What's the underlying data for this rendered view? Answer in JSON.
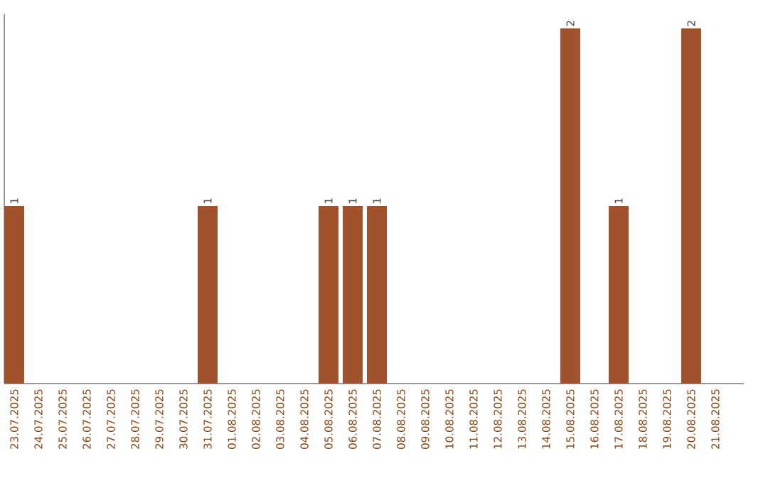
{
  "chart_data": {
    "type": "bar",
    "color": "#a0522d",
    "categories": [
      "23.07.2025",
      "24.07.2025",
      "25.07.2025",
      "26.07.2025",
      "27.07.2025",
      "28.07.2025",
      "29.07.2025",
      "30.07.2025",
      "31.07.2025",
      "01.08.2025",
      "02.08.2025",
      "03.08.2025",
      "04.08.2025",
      "05.08.2025",
      "06.08.2025",
      "07.08.2025",
      "08.08.2025",
      "09.08.2025",
      "10.08.2025",
      "11.08.2025",
      "12.08.2025",
      "13.08.2025",
      "14.08.2025",
      "15.08.2025",
      "16.08.2025",
      "17.08.2025",
      "18.08.2025",
      "19.08.2025",
      "20.08.2025",
      "21.08.2025"
    ],
    "values": [
      1,
      0,
      0,
      0,
      0,
      0,
      0,
      0,
      1,
      0,
      0,
      0,
      0,
      1,
      1,
      1,
      0,
      0,
      0,
      0,
      0,
      0,
      0,
      2,
      0,
      1,
      0,
      0,
      2,
      0
    ],
    "value_labels": [
      "1",
      null,
      null,
      null,
      null,
      null,
      null,
      null,
      "1",
      null,
      null,
      null,
      null,
      "1",
      "1",
      "1",
      null,
      null,
      null,
      null,
      null,
      null,
      null,
      "2",
      null,
      "1",
      null,
      null,
      "2",
      null
    ]
  }
}
